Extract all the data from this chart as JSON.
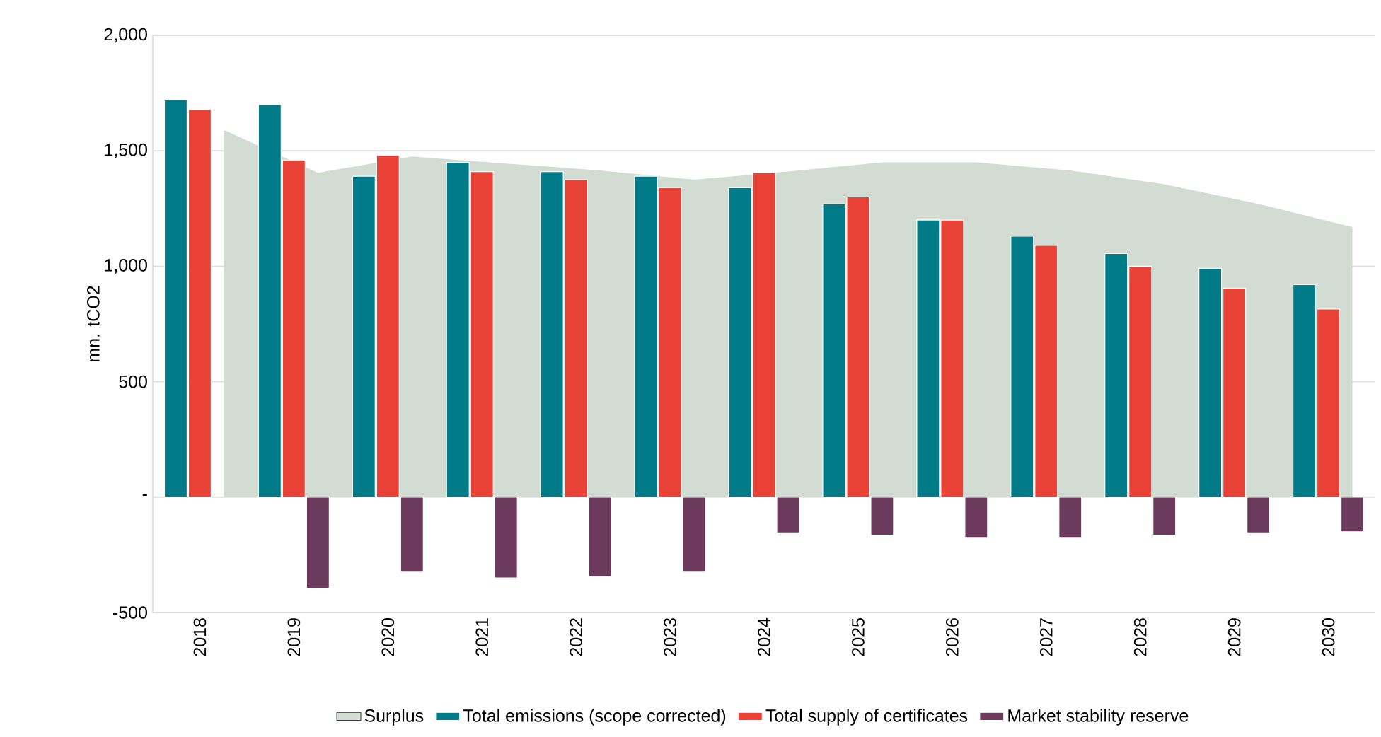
{
  "chart_data": {
    "type": "bar",
    "ylabel": "mn. tCO2",
    "categories": [
      "2018",
      "2019",
      "2020",
      "2021",
      "2022",
      "2023",
      "2024",
      "2025",
      "2026",
      "2027",
      "2028",
      "2029",
      "2030"
    ],
    "series": [
      {
        "name": "Surplus",
        "type": "area",
        "color": "#d3dcd3",
        "values": [
          1590,
          1405,
          1475,
          1445,
          1415,
          1375,
          1410,
          1450,
          1450,
          1415,
          1355,
          1270,
          1170
        ]
      },
      {
        "name": "Total emissions (scope corrected)",
        "color": "#007b87",
        "values": [
          1720,
          1700,
          1390,
          1450,
          1410,
          1390,
          1340,
          1270,
          1200,
          1130,
          1055,
          990,
          920
        ]
      },
      {
        "name": "Total supply of certificates",
        "color": "#e84136",
        "values": [
          1680,
          1460,
          1480,
          1410,
          1375,
          1340,
          1405,
          1300,
          1200,
          1090,
          1000,
          905,
          815
        ]
      },
      {
        "name": "Market stability reserve",
        "color": "#6b3a5c",
        "values": [
          null,
          -395,
          -325,
          -350,
          -345,
          -325,
          -155,
          -165,
          -175,
          -175,
          -165,
          -155,
          -150
        ]
      }
    ],
    "ylim": [
      -500,
      2000
    ],
    "yticks": [
      {
        "value": -500,
        "label": "-500"
      },
      {
        "value": 0,
        "label": "-"
      },
      500,
      {
        "value": 1000,
        "label": "1,000"
      },
      {
        "value": 1500,
        "label": "1,500"
      },
      {
        "value": 2000,
        "label": "2,000"
      }
    ],
    "grid": "y",
    "legend": "bottom"
  }
}
